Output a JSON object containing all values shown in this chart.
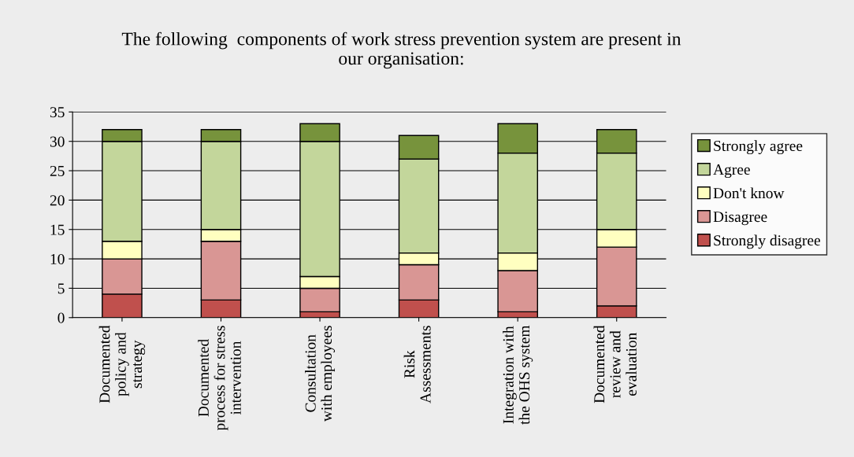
{
  "chart_data": {
    "type": "bar",
    "stacked": true,
    "title": "The following  components of work stress prevention system are present in\nour organisation:",
    "categories": [
      "Documented\npolicy and\nstrategy",
      "Documented\nprocess for stress\nintervention",
      "Consultation\nwith employees",
      "Risk\nAssessments",
      "Integration with\nthe OHS system",
      "Documented\nreview and\nevaluation"
    ],
    "series": [
      {
        "name": "Strongly disagree",
        "color": "#c0504d",
        "values": [
          4,
          3,
          1,
          3,
          1,
          2
        ]
      },
      {
        "name": "Disagree",
        "color": "#d99694",
        "values": [
          6,
          10,
          4,
          6,
          7,
          10
        ]
      },
      {
        "name": "Don't know",
        "color": "#ffffc0",
        "values": [
          3,
          2,
          2,
          2,
          3,
          3
        ]
      },
      {
        "name": "Agree",
        "color": "#c3d69b",
        "values": [
          17,
          15,
          23,
          16,
          17,
          13
        ]
      },
      {
        "name": "Strongly agree",
        "color": "#77933c",
        "values": [
          2,
          2,
          3,
          4,
          5,
          4
        ]
      }
    ],
    "ylim": [
      0,
      35
    ],
    "yticks": [
      0,
      5,
      10,
      15,
      20,
      25,
      30,
      35
    ],
    "grid": "y",
    "legend": "right"
  }
}
